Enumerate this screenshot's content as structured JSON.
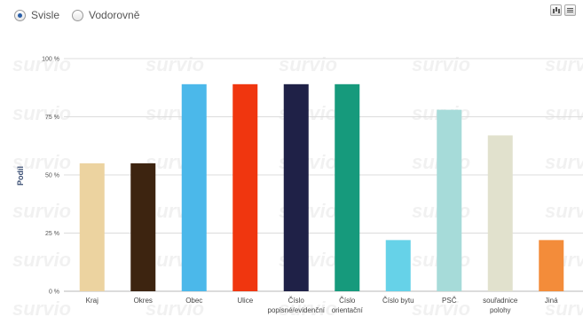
{
  "controls": {
    "vertical_label": "Svisle",
    "horizontal_label": "Vodorovně",
    "selected": "vertical"
  },
  "watermark": "survio",
  "chart_data": {
    "type": "bar",
    "ylabel": "Podíl",
    "xlabel": "",
    "ylim": [
      0,
      100
    ],
    "yticks": [
      0,
      25,
      50,
      75,
      100
    ],
    "ytick_labels": [
      "0 %",
      "25 %",
      "50 %",
      "75 %",
      "100 %"
    ],
    "grid": true,
    "categories": [
      "Kraj",
      "Okres",
      "Obec",
      "Ulice",
      "Číslo popisné/evidenční",
      "Číslo orientační",
      "Číslo bytu",
      "PSČ",
      "souřadnice polohy",
      "Jiná"
    ],
    "category_lines": [
      [
        "Kraj"
      ],
      [
        "Okres"
      ],
      [
        "Obec"
      ],
      [
        "Ulice"
      ],
      [
        "Číslo",
        "popisné/evidenční"
      ],
      [
        "Číslo",
        "orientační"
      ],
      [
        "Číslo bytu"
      ],
      [
        "PSČ"
      ],
      [
        "souřadnice",
        "polohy"
      ],
      [
        "Jiná"
      ]
    ],
    "values": [
      55,
      55,
      89,
      89,
      89,
      89,
      22,
      78,
      67,
      22
    ],
    "colors": [
      "#ecd3a0",
      "#3d2410",
      "#4bb8ea",
      "#f0360f",
      "#1f2147",
      "#169a7c",
      "#66d2e8",
      "#a6dbd9",
      "#e1e1cd",
      "#f38c3a"
    ]
  }
}
